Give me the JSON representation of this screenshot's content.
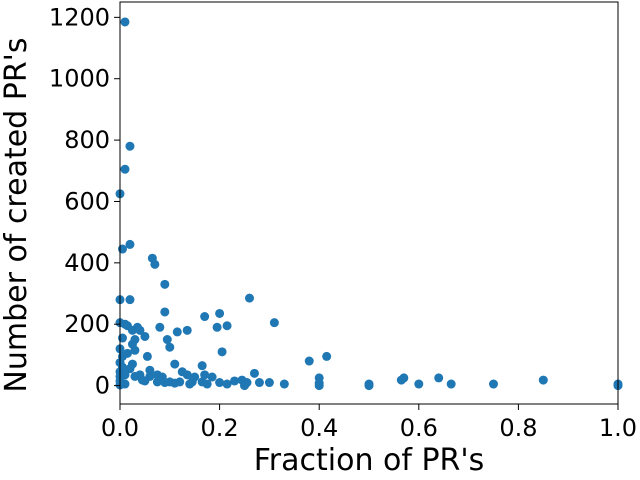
{
  "chart_data": {
    "type": "scatter",
    "title": "",
    "xlabel": "Fraction of PR's",
    "ylabel": "Number of created PR's",
    "xlim": [
      0.0,
      1.0
    ],
    "ylim": [
      -60,
      1250
    ],
    "x_ticks": [
      "0.0",
      "0.2",
      "0.4",
      "0.6",
      "0.8",
      "1.0"
    ],
    "y_ticks": [
      "0",
      "200",
      "400",
      "600",
      "800",
      "1000",
      "1200"
    ],
    "x_tick_values": [
      0.0,
      0.2,
      0.4,
      0.6,
      0.8,
      1.0
    ],
    "y_tick_values": [
      0,
      200,
      400,
      600,
      800,
      1000,
      1200
    ],
    "marker_color": "#1f77b4",
    "grid": false,
    "legend": null,
    "points": [
      [
        0.01,
        1185
      ],
      [
        0.02,
        780
      ],
      [
        0.01,
        705
      ],
      [
        0.0,
        625
      ],
      [
        0.005,
        445
      ],
      [
        0.02,
        460
      ],
      [
        0.065,
        415
      ],
      [
        0.07,
        395
      ],
      [
        0.09,
        330
      ],
      [
        0.0,
        280
      ],
      [
        0.02,
        280
      ],
      [
        0.26,
        285
      ],
      [
        0.09,
        240
      ],
      [
        0.17,
        225
      ],
      [
        0.2,
        235
      ],
      [
        0.0,
        205
      ],
      [
        0.01,
        200
      ],
      [
        0.015,
        195
      ],
      [
        0.035,
        190
      ],
      [
        0.08,
        190
      ],
      [
        0.195,
        190
      ],
      [
        0.215,
        195
      ],
      [
        0.31,
        205
      ],
      [
        0.025,
        180
      ],
      [
        0.04,
        180
      ],
      [
        0.115,
        175
      ],
      [
        0.135,
        180
      ],
      [
        0.05,
        160
      ],
      [
        0.005,
        155
      ],
      [
        0.03,
        150
      ],
      [
        0.095,
        150
      ],
      [
        0.025,
        135
      ],
      [
        0.1,
        125
      ],
      [
        0.0,
        120
      ],
      [
        0.03,
        115
      ],
      [
        0.205,
        110
      ],
      [
        0.015,
        105
      ],
      [
        0.005,
        95
      ],
      [
        0.055,
        95
      ],
      [
        0.415,
        95
      ],
      [
        0.38,
        80
      ],
      [
        0.0,
        75
      ],
      [
        0.025,
        70
      ],
      [
        0.11,
        70
      ],
      [
        0.165,
        65
      ],
      [
        0.005,
        60
      ],
      [
        0.02,
        55
      ],
      [
        0.06,
        50
      ],
      [
        0.0,
        45
      ],
      [
        0.125,
        45
      ],
      [
        0.27,
        40
      ],
      [
        0.01,
        35
      ],
      [
        0.04,
        35
      ],
      [
        0.075,
        35
      ],
      [
        0.135,
        35
      ],
      [
        0.17,
        35
      ],
      [
        0.0,
        30
      ],
      [
        0.03,
        30
      ],
      [
        0.06,
        30
      ],
      [
        0.085,
        28
      ],
      [
        0.15,
        28
      ],
      [
        0.185,
        28
      ],
      [
        0.4,
        25
      ],
      [
        0.57,
        25
      ],
      [
        0.64,
        25
      ],
      [
        0.85,
        18
      ],
      [
        0.565,
        18
      ],
      [
        0.245,
        18
      ],
      [
        0.23,
        15
      ],
      [
        0.0,
        15
      ],
      [
        0.05,
        15
      ],
      [
        0.075,
        12
      ],
      [
        0.1,
        12
      ],
      [
        0.12,
        12
      ],
      [
        0.145,
        12
      ],
      [
        0.165,
        12
      ],
      [
        0.2,
        10
      ],
      [
        0.255,
        10
      ],
      [
        0.28,
        10
      ],
      [
        0.3,
        10
      ],
      [
        0.4,
        8
      ],
      [
        0.5,
        5
      ],
      [
        0.6,
        5
      ],
      [
        0.665,
        5
      ],
      [
        0.75,
        5
      ],
      [
        1.0,
        5
      ],
      [
        0.33,
        5
      ],
      [
        0.215,
        5
      ],
      [
        0.175,
        5
      ],
      [
        0.14,
        5
      ],
      [
        0.01,
        5
      ],
      [
        0.0,
        2
      ],
      [
        0.5,
        0
      ],
      [
        1.0,
        0
      ],
      [
        0.4,
        0
      ],
      [
        0.25,
        0
      ],
      [
        0.11,
        8
      ],
      [
        0.09,
        10
      ],
      [
        0.045,
        18
      ]
    ]
  }
}
